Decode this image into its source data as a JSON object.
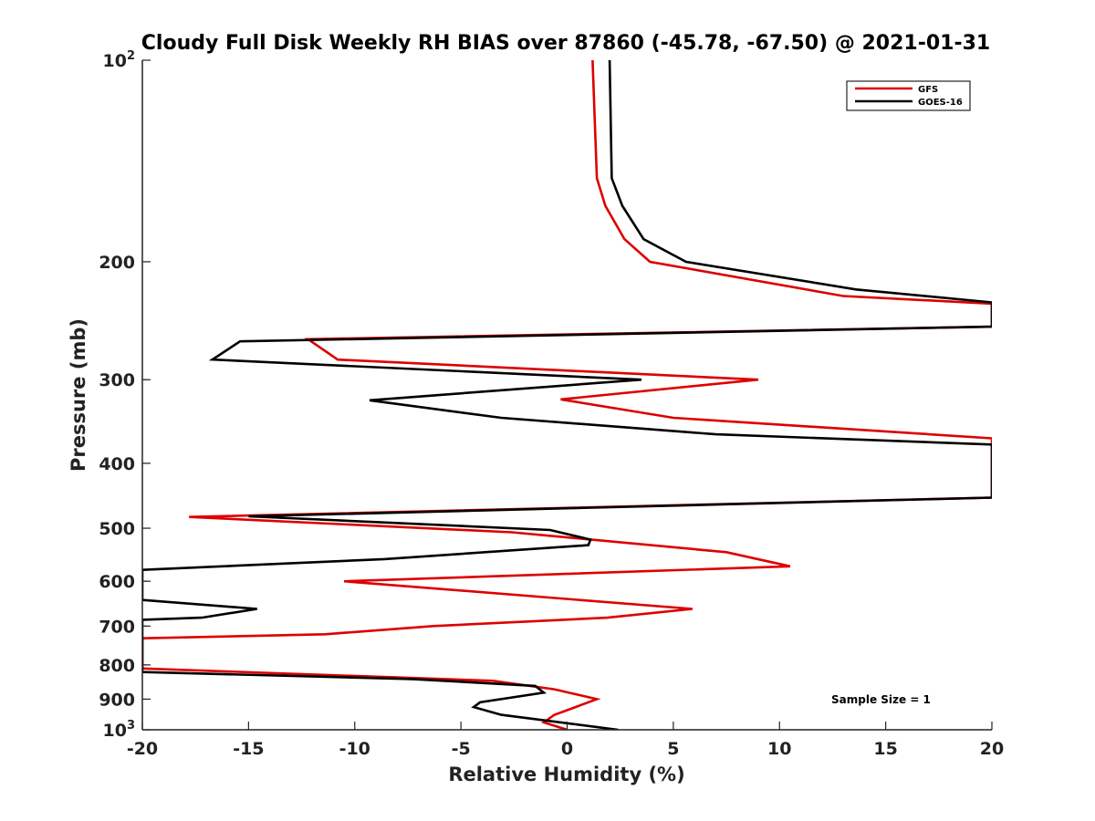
{
  "chart_data": {
    "type": "line",
    "title": "Cloudy Full Disk Weekly RH BIAS over 87860 (-45.78, -67.50) @ 2021-01-31",
    "xlabel": "Relative Humidity (%)",
    "ylabel": "Pressure (mb)",
    "xlim": [
      -20,
      20
    ],
    "ylim": [
      100,
      1000
    ],
    "y_scale": "log",
    "y_direction": "reversed",
    "x_ticks": [
      -20,
      -15,
      -10,
      -5,
      0,
      5,
      10,
      15,
      20
    ],
    "x_tick_labels": [
      "-20",
      "-15",
      "-10",
      "-5",
      "0",
      "5",
      "10",
      "15",
      "20"
    ],
    "y_tick_labels": [
      {
        "value": 100,
        "base": "10",
        "exp": "2"
      },
      {
        "value": 200,
        "base": "200",
        "exp": ""
      },
      {
        "value": 300,
        "base": "300",
        "exp": ""
      },
      {
        "value": 400,
        "base": "400",
        "exp": ""
      },
      {
        "value": 500,
        "base": "500",
        "exp": ""
      },
      {
        "value": 600,
        "base": "600",
        "exp": ""
      },
      {
        "value": 700,
        "base": "700",
        "exp": ""
      },
      {
        "value": 800,
        "base": "800",
        "exp": ""
      },
      {
        "value": 900,
        "base": "900",
        "exp": ""
      },
      {
        "value": 1000,
        "base": "10",
        "exp": "3"
      }
    ],
    "grid": false,
    "legend_position": "top-right",
    "annotation": "Sample Size = 1",
    "series": [
      {
        "name": "GFS",
        "color": "#dd0000",
        "points": [
          [
            1.2,
            100
          ],
          [
            1.4,
            150
          ],
          [
            1.8,
            165
          ],
          [
            2.7,
            185
          ],
          [
            3.9,
            200
          ],
          [
            13.0,
            225
          ],
          [
            20.0,
            231
          ],
          [
            20.0,
            250
          ],
          [
            -12.2,
            261
          ],
          [
            -10.8,
            280
          ],
          [
            9.0,
            300
          ],
          [
            -0.3,
            321
          ],
          [
            5.0,
            342
          ],
          [
            20.0,
            367
          ],
          [
            20.0,
            450
          ],
          [
            -17.8,
            481
          ],
          [
            -2.6,
            507
          ],
          [
            7.5,
            543
          ],
          [
            10.5,
            570
          ],
          [
            -10.5,
            600
          ],
          [
            5.9,
            660
          ],
          [
            1.9,
            680
          ],
          [
            -6.3,
            700
          ],
          [
            -11.4,
            720
          ],
          [
            -20.0,
            730
          ],
          [
            -20.0,
            810
          ],
          [
            -3.5,
            845
          ],
          [
            -0.6,
            870
          ],
          [
            1.4,
            900
          ],
          [
            0.4,
            925
          ],
          [
            -0.6,
            950
          ],
          [
            -1.1,
            975
          ],
          [
            0.0,
            1000
          ]
        ]
      },
      {
        "name": "GOES-16",
        "color": "#000000",
        "points": [
          [
            2.0,
            100
          ],
          [
            2.1,
            150
          ],
          [
            2.6,
            165
          ],
          [
            3.6,
            185
          ],
          [
            5.6,
            200
          ],
          [
            13.6,
            220
          ],
          [
            20.0,
            230
          ],
          [
            20.0,
            250
          ],
          [
            -15.4,
            263
          ],
          [
            -16.7,
            280
          ],
          [
            3.5,
            300
          ],
          [
            -9.3,
            322
          ],
          [
            -3.1,
            342
          ],
          [
            7.0,
            362
          ],
          [
            20.0,
            375
          ],
          [
            20.0,
            450
          ],
          [
            -15.0,
            480
          ],
          [
            -0.8,
            503
          ],
          [
            1.1,
            520
          ],
          [
            1.0,
            530
          ],
          [
            -8.6,
            556
          ],
          [
            -20.0,
            577
          ],
          [
            -20.0,
            640
          ],
          [
            -14.6,
            660
          ],
          [
            -17.2,
            680
          ],
          [
            -20.0,
            685
          ],
          [
            -20.0,
            820
          ],
          [
            -7.3,
            840
          ],
          [
            -1.5,
            860
          ],
          [
            -1.1,
            880
          ],
          [
            -4.1,
            910
          ],
          [
            -4.4,
            925
          ],
          [
            -3.1,
            950
          ],
          [
            2.4,
            1000
          ]
        ]
      }
    ]
  }
}
